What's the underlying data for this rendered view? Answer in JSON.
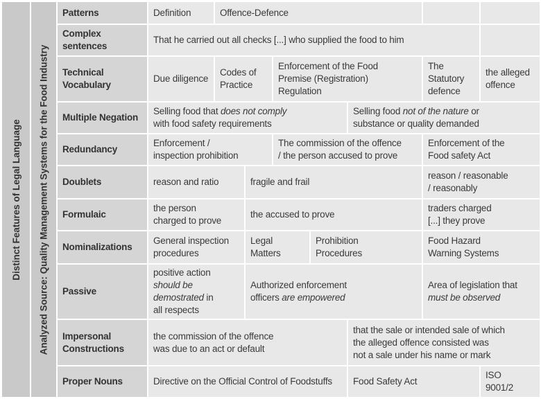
{
  "side_label_outer": "Distinct Features of Legal Language",
  "side_label_inner": "Analyzed Source: Quality Management Systems for the Food Industry",
  "rows": [
    {
      "label": "Patterns",
      "cells": [
        [
          {
            "t": "Definition"
          }
        ],
        [
          {
            "t": "Offence-Defence"
          }
        ],
        [],
        []
      ]
    },
    {
      "label": "Complex\nsentences",
      "cells": [
        [
          {
            "t": "That he carried out all checks [...] who supplied the food to him"
          }
        ],
        []
      ]
    },
    {
      "label": "Technical\nVocabulary",
      "cells": [
        [
          {
            "t": "Due diligence"
          }
        ],
        [
          {
            "t": "Codes of\nPractice"
          }
        ],
        [
          {
            "t": "Enforcement of the Food\nPremise (Registration)\nRegulation"
          }
        ],
        [
          {
            "t": "The\nStatutory\ndefence"
          }
        ],
        [
          {
            "t": "the alleged\noffence"
          }
        ]
      ]
    },
    {
      "label": "Multiple Negation",
      "cells": [
        [
          {
            "t": "Selling food that "
          },
          {
            "t": "does not comply",
            "i": true
          },
          {
            "t": "\nwith food safety requirements"
          }
        ],
        [
          {
            "t": "Selling food "
          },
          {
            "t": "not of the nature",
            "i": true
          },
          {
            "t": " or\nsubstance or quality demanded"
          }
        ]
      ]
    },
    {
      "label": "Redundancy",
      "cells": [
        [
          {
            "t": "Enforcement /\ninspection prohibition"
          }
        ],
        [
          {
            "t": "The commission of the offence\n/ the person accused to prove"
          }
        ],
        [
          {
            "t": "Enforcement of the\nFood safety Act"
          }
        ]
      ]
    },
    {
      "label": "Doublets",
      "cells": [
        [
          {
            "t": "reason and ratio"
          }
        ],
        [
          {
            "t": "fragile and frail"
          }
        ],
        [
          {
            "t": "reason / reasonable\n/ reasonably"
          }
        ]
      ]
    },
    {
      "label": "Formulaic",
      "cells": [
        [
          {
            "t": "the person\ncharged to prove"
          }
        ],
        [
          {
            "t": "the accused to prove"
          }
        ],
        [
          {
            "t": "traders charged\n[...] they prove"
          }
        ]
      ]
    },
    {
      "label": "Nominalizations",
      "cells": [
        [
          {
            "t": "General inspection\nprocedures"
          }
        ],
        [
          {
            "t": "Legal\nMatters"
          }
        ],
        [
          {
            "t": "Prohibition\nProcedures"
          }
        ],
        [
          {
            "t": "Food Hazard\nWarning Systems"
          }
        ]
      ]
    },
    {
      "label": "Passive",
      "cells": [
        [
          {
            "t": "positive action\n"
          },
          {
            "t": "should be\ndemostrated",
            "i": true
          },
          {
            "t": " in\nall respects"
          }
        ],
        [
          {
            "t": "Authorized enforcement\nofficers "
          },
          {
            "t": "are empowered",
            "i": true
          }
        ],
        [
          {
            "t": "Area of legislation that\n"
          },
          {
            "t": "must be observed",
            "i": true
          }
        ]
      ]
    },
    {
      "label": "Impersonal\nConstructions",
      "cells": [
        [
          {
            "t": "the commission of the offence\nwas due to an act or default"
          }
        ],
        [
          {
            "t": "that the sale or intended sale of which\nthe alleged offence consisted was\nnot a sale under his name or mark"
          }
        ]
      ]
    },
    {
      "label": "Proper Nouns",
      "cells": [
        [
          {
            "t": "Directive on the Official Control of Foodstuffs"
          }
        ],
        [
          {
            "t": "Food Safety Act"
          }
        ],
        [
          {
            "t": "ISO\n9001/2"
          }
        ]
      ]
    }
  ]
}
